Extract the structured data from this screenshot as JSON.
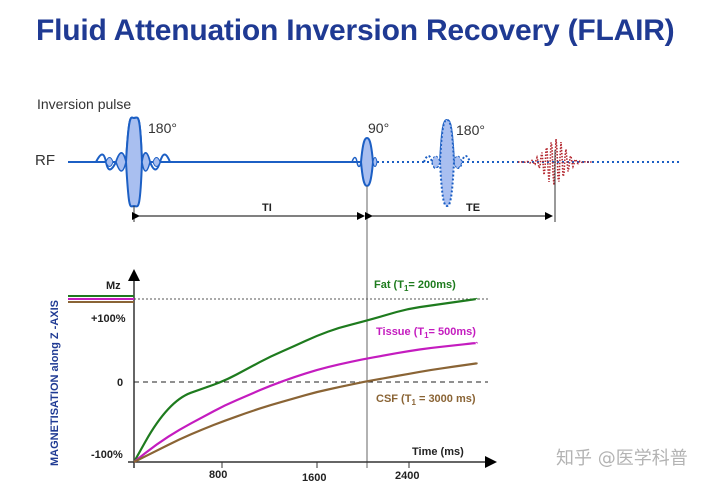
{
  "title": "Fluid Attenuation Inversion Recovery (FLAIR)",
  "sequence": {
    "inversion_label": "Inversion pulse",
    "rf_label": "RF",
    "pulse1_angle": "180°",
    "pulse2_angle": "90°",
    "pulse3_angle": "180°",
    "ti_label": "TI",
    "te_label": "TE"
  },
  "colors": {
    "title": "#1f3a93",
    "pulse_line": "#1c5fc4",
    "pulse_fill": "#a9bff0",
    "echo": "#b3262e",
    "fat": "#1e7b1e",
    "tissue": "#c41cbf",
    "csf": "#8a6435"
  },
  "chart_data": {
    "type": "line",
    "ylabel": "MAGNETISATION along Z -AXIS",
    "xlabel": "Time (ms)",
    "y_axis_top_label": "Mz",
    "y_tick_labels": [
      "+100%",
      "0",
      "-100%"
    ],
    "x_tick_labels": [
      "800",
      "1600",
      "2400"
    ],
    "x": [
      0,
      200,
      400,
      600,
      800,
      1000,
      1200,
      1400,
      1600,
      1800,
      2000,
      2200,
      2400,
      2600,
      2800,
      3000
    ],
    "ylim": [
      -100,
      100
    ],
    "xlim": [
      0,
      3100
    ],
    "series": [
      {
        "name": "Fat",
        "t1_label": "Fat (T",
        "t1_sub": "1",
        "t1_tail": "= 200ms)",
        "values": [
          -100,
          -50,
          -20,
          -10,
          0,
          15,
          30,
          42,
          55,
          65,
          72,
          80,
          88,
          92,
          96,
          100
        ]
      },
      {
        "name": "Tissue",
        "t1_label": "Tissue (T",
        "t1_sub": "1",
        "t1_tail": "= 500ms)",
        "values": [
          -100,
          -78,
          -60,
          -45,
          -30,
          -18,
          -6,
          4,
          13,
          20,
          26,
          31,
          36,
          40,
          43,
          46
        ]
      },
      {
        "name": "CSF",
        "t1_label": "CSF (T",
        "t1_sub": "1",
        "t1_tail": " = 3000 ms)",
        "values": [
          -100,
          -86,
          -72,
          -60,
          -49,
          -39,
          -30,
          -22,
          -14,
          -8,
          -2,
          3,
          8,
          13,
          17,
          21
        ]
      }
    ]
  },
  "watermark": "知乎 @医学科普"
}
